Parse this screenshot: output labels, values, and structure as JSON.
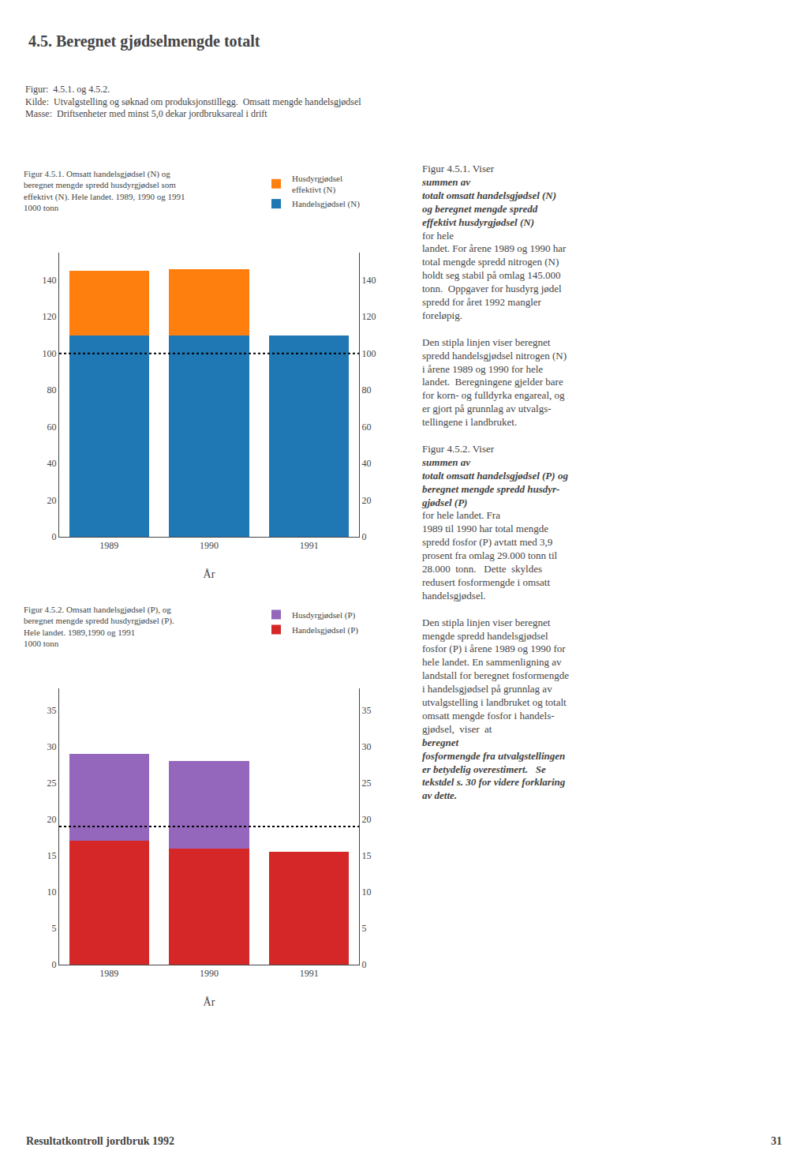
{
  "title": "4.5. Beregnet gjødselmengde totalt",
  "subtitle": [
    "Figur:  4.5.1. og 4.5.2.",
    "Kilde:  Utvalgstelling og søknad om produksjonstillegg.  Omsatt mengde handelsgjødsel",
    "Masse:  Driftsenheter med minst 5,0 dekar jordbruksareal i drift"
  ],
  "annotations": [
    [
      {
        "text": "Figur 4.5.1. Viser ",
        "bold_italic": false
      },
      {
        "text": "summen av",
        "bold_italic": true
      },
      {
        "text": "totalt omsatt handelsgjødsel (N)",
        "bold_italic": true
      },
      {
        "text": "og beregnet mengde spredd",
        "bold_italic": true
      },
      {
        "text": "effektivt husdyrgjødsel (N)",
        "bold_italic": true
      },
      {
        "text": "for hele",
        "bold_italic": false
      },
      {
        "text": "landet. For årene 1989 og 1990 har",
        "bold_italic": false
      },
      {
        "text": "total mengde spredd nitrogen (N)",
        "bold_italic": false
      },
      {
        "text": "holdt seg stabil på omlag 145.000",
        "bold_italic": false
      },
      {
        "text": "tonn.  Oppgaver for husdyrg jødel",
        "bold_italic": false
      },
      {
        "text": "spredd for året 1992 mangler",
        "bold_italic": false
      },
      {
        "text": "foreløpig.",
        "bold_italic": false
      }
    ],
    [
      {
        "text": "Den stipla linjen viser beregnet",
        "bold_italic": false
      },
      {
        "text": "spredd handelsgjødsel nitrogen (N)",
        "bold_italic": false
      },
      {
        "text": "i årene 1989 og 1990 for hele",
        "bold_italic": false
      },
      {
        "text": "landet.  Beregningene gjelder bare",
        "bold_italic": false
      },
      {
        "text": "for korn- og fulldyrka engareal, og",
        "bold_italic": false
      },
      {
        "text": "er gjort på grunnlag av utvalgs-",
        "bold_italic": false
      },
      {
        "text": "tellingene i landbruket.",
        "bold_italic": false
      }
    ],
    [
      {
        "text": "Figur 4.5.2. Viser ",
        "bold_italic": false
      },
      {
        "text": "summen av",
        "bold_italic": true
      },
      {
        "text": "totalt omsatt handelsgjødsel (P) og",
        "bold_italic": true
      },
      {
        "text": "beregnet mengde spredd husdyr-",
        "bold_italic": true
      },
      {
        "text": "gjødsel (P)",
        "bold_italic": true
      },
      {
        "text": "for hele landet. Fra",
        "bold_italic": false
      },
      {
        "text": "1989 til 1990 har total mengde",
        "bold_italic": false
      },
      {
        "text": "spredd fosfor (P) avtatt med 3,9",
        "bold_italic": false
      },
      {
        "text": "prosent fra omlag 29.000 tonn til",
        "bold_italic": false
      },
      {
        "text": "28.000  tonn.   Dette  skyldes",
        "bold_italic": false
      },
      {
        "text": "redusert fosformengde i omsatt",
        "bold_italic": false
      },
      {
        "text": "handelsgjødsel.",
        "bold_italic": false
      }
    ],
    [
      {
        "text": "Den stipla linjen viser beregnet",
        "bold_italic": false
      },
      {
        "text": "mengde spredd handelsgjødsel",
        "bold_italic": false
      },
      {
        "text": "fosfor (P) i årene 1989 og 1990 for",
        "bold_italic": false
      },
      {
        "text": "hele landet. En sammenligning av",
        "bold_italic": false
      },
      {
        "text": "landstall for beregnet fosformengde",
        "bold_italic": false
      },
      {
        "text": "i handelsgjødsel på grunnlag av",
        "bold_italic": false
      },
      {
        "text": "utvalgstelling i landbruket og totalt",
        "bold_italic": false
      },
      {
        "text": "omsatt mengde fosfor i handels-",
        "bold_italic": false
      },
      {
        "text": "gjødsel,  viser  at  ",
        "bold_italic": false
      },
      {
        "text": "beregnet",
        "bold_italic": true
      },
      {
        "text": "fosformengde fra utvalgstellingen",
        "bold_italic": true
      },
      {
        "text": "er betydelig overestimert.   Se",
        "bold_italic": true
      },
      {
        "text": "tekstdel s. 30 for videre forklaring",
        "bold_italic": true
      },
      {
        "text": "av dette.",
        "bold_italic": true
      }
    ]
  ],
  "footer": [
    "Resultatkontroll jordbruk 1992",
    "31"
  ],
  "chart_data": [
    {
      "type": "bar",
      "stacked": true,
      "grid": false,
      "title": "Figur 4.5.1. Omsatt handelsgjødsel (N) og\nberegnet mengde spredd husdyrgjødsel som\neffektivt (N). Hele landet. 1989, 1990 og 1991\n1000 tonn",
      "xlabel": "År",
      "categories": [
        "1989",
        "1990",
        "1991"
      ],
      "series": [
        {
          "name": "Handelsgjødsel (N)",
          "values": [
            110,
            110,
            110
          ]
        },
        {
          "name": "Husdyrgjødsel\neffektivt (N)",
          "values": [
            35,
            36,
            0
          ]
        }
      ],
      "ylim": [
        0,
        155
      ],
      "yticks": [
        0,
        20,
        40,
        60,
        80,
        100,
        120,
        140
      ],
      "y2lim": [
        0,
        155
      ],
      "y2ticks": [
        0,
        20,
        40,
        60,
        80,
        100,
        120,
        140
      ],
      "reference_line": {
        "value": 100,
        "line_style": "dotted"
      }
    },
    {
      "type": "bar",
      "stacked": true,
      "grid": false,
      "title": "Figur 4.5.2. Omsatt handelsgjødsel (P), og\nberegnet mengde spredd husdyrgjødsel (P).\nHele landet. 1989,1990 og 1991\n1000 tonn",
      "xlabel": "År",
      "categories": [
        "1989",
        "1990",
        "1991"
      ],
      "series": [
        {
          "name": "Handelsgjødsel (P)",
          "values": [
            17,
            16,
            15.5
          ]
        },
        {
          "name": "Husdyrgjødsel (P)",
          "values": [
            12,
            12,
            0
          ]
        }
      ],
      "ylim": [
        0,
        38
      ],
      "yticks": [
        0,
        5,
        10,
        15,
        20,
        25,
        30,
        35
      ],
      "y2lim": [
        0,
        38
      ],
      "y2ticks": [
        0,
        5,
        10,
        15,
        20,
        25,
        30,
        35
      ],
      "reference_line": {
        "value": 19,
        "line_style": "dotted"
      }
    }
  ]
}
